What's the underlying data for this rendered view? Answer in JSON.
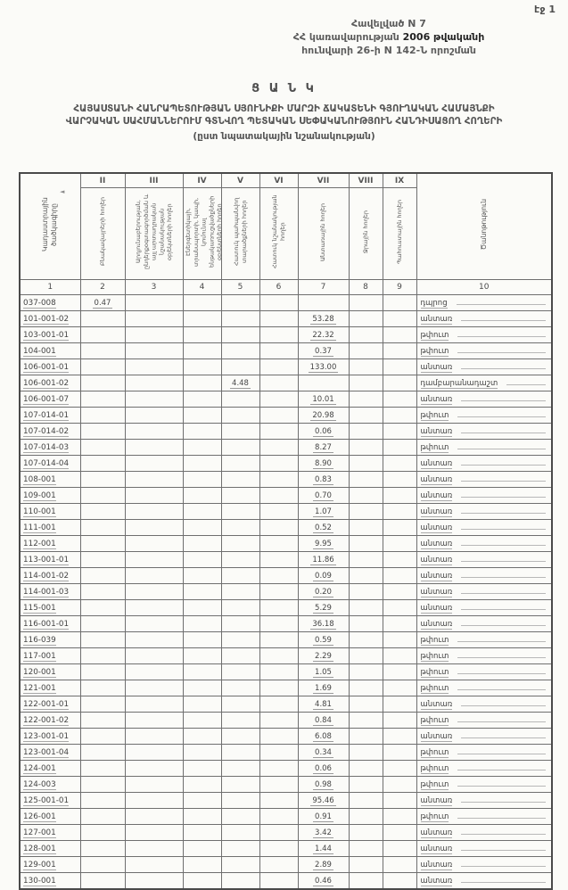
{
  "page": {
    "page_label": "էջ 1"
  },
  "appendix": {
    "line1": "Հավելված N 7",
    "line2a": "ՀՀ կառավարության ",
    "line2b": "2006 թվականի",
    "line3": "հունվարի 26-ի N 142-Ն որոշման"
  },
  "title": {
    "heading": "Ց Ա Ն Կ",
    "line1": "ՀԱՅԱՍՏԱՆԻ ՀԱՆՐԱՊԵՏՈՒԹՅԱՆ ՍՅՈՒՆԻՔԻ ՄԱՐԶԻ ՃԱԿԱՏԵՆԻ ԳՅՈՒՂԱԿԱՆ ՀԱՄԱՅՆՔԻ",
    "line2": "ՎԱՐՉԱԿԱՆ ՍԱՀՄԱՆՆԵՐՈՒՄ ԳՏՆՎՈՂ ՊԵՏԱԿԱՆ ՍԵՓԱԿԱՆՈՒԹՅՈՒՆ ՀԱՆԴԻՍԱՑՈՂ ՀՈՂԵՐԻ",
    "line3": "(ըստ նպատակային նշանակության)"
  },
  "artifact": {
    "arrow_mark": "◄"
  },
  "colors": {
    "ink": "#4a4a4a",
    "border": "#6f6f6f",
    "background": "#fbfbf8"
  },
  "table": {
    "roman_numerals": [
      "II",
      "III",
      "IV",
      "V",
      "VI",
      "VII",
      "VIII",
      "IX"
    ],
    "column_headers": [
      "Կադաստրային ծածկագիրը",
      "Բնակավայրերի հողեր",
      "Արդյունաբերության, ընդերքօգտագործման և այլ արտադրական նշանակության օբյեկտների հողեր",
      "Էներգետիկայի, տրանսպորտի, կապի, կոմունալ ենթակառուցվածքների օբյեկտների հողեր",
      "Հատուկ պահպանվող տարածքների հողեր",
      "Հատուկ նշանակության հողեր",
      "Անտառային հողեր",
      "Ջրային հողեր",
      "Պահուստային հողեր",
      "Ծանոթություն"
    ],
    "column_numbers": [
      "1",
      "2",
      "3",
      "4",
      "5",
      "6",
      "7",
      "8",
      "9",
      "10"
    ],
    "rows": [
      [
        "037-008",
        "0.47",
        "",
        "",
        "",
        "",
        "",
        "",
        "",
        "դպրոց"
      ],
      [
        "101-001-02",
        "",
        "",
        "",
        "",
        "",
        "53.28",
        "",
        "",
        "անտառ"
      ],
      [
        "103-001-01",
        "",
        "",
        "",
        "",
        "",
        "22.32",
        "",
        "",
        "թփուտ"
      ],
      [
        "104-001",
        "",
        "",
        "",
        "",
        "",
        "0.37",
        "",
        "",
        "թփուտ"
      ],
      [
        "106-001-01",
        "",
        "",
        "",
        "",
        "",
        "133.00",
        "",
        "",
        "անտառ"
      ],
      [
        "106-001-02",
        "",
        "",
        "",
        "4.48",
        "",
        "",
        "",
        "",
        "դամբարանադաշտ"
      ],
      [
        "106-001-07",
        "",
        "",
        "",
        "",
        "",
        "10.01",
        "",
        "",
        "անտառ"
      ],
      [
        "107-014-01",
        "",
        "",
        "",
        "",
        "",
        "20.98",
        "",
        "",
        "թփուտ"
      ],
      [
        "107-014-02",
        "",
        "",
        "",
        "",
        "",
        "0.06",
        "",
        "",
        "անտառ"
      ],
      [
        "107-014-03",
        "",
        "",
        "",
        "",
        "",
        "8.27",
        "",
        "",
        "թփուտ"
      ],
      [
        "107-014-04",
        "",
        "",
        "",
        "",
        "",
        "8.90",
        "",
        "",
        "անտառ"
      ],
      [
        "108-001",
        "",
        "",
        "",
        "",
        "",
        "0.83",
        "",
        "",
        "անտառ"
      ],
      [
        "109-001",
        "",
        "",
        "",
        "",
        "",
        "0.70",
        "",
        "",
        "անտառ"
      ],
      [
        "110-001",
        "",
        "",
        "",
        "",
        "",
        "1.07",
        "",
        "",
        "անտառ"
      ],
      [
        "111-001",
        "",
        "",
        "",
        "",
        "",
        "0.52",
        "",
        "",
        "անտառ"
      ],
      [
        "112-001",
        "",
        "",
        "",
        "",
        "",
        "9.95",
        "",
        "",
        "անտառ"
      ],
      [
        "113-001-01",
        "",
        "",
        "",
        "",
        "",
        "11.86",
        "",
        "",
        "անտառ"
      ],
      [
        "114-001-02",
        "",
        "",
        "",
        "",
        "",
        "0.09",
        "",
        "",
        "անտառ"
      ],
      [
        "114-001-03",
        "",
        "",
        "",
        "",
        "",
        "0.20",
        "",
        "",
        "անտառ"
      ],
      [
        "115-001",
        "",
        "",
        "",
        "",
        "",
        "5.29",
        "",
        "",
        "անտառ"
      ],
      [
        "116-001-01",
        "",
        "",
        "",
        "",
        "",
        "36.18",
        "",
        "",
        "անտառ"
      ],
      [
        "116-039",
        "",
        "",
        "",
        "",
        "",
        "0.59",
        "",
        "",
        "թփուտ"
      ],
      [
        "117-001",
        "",
        "",
        "",
        "",
        "",
        "2.29",
        "",
        "",
        "թփուտ"
      ],
      [
        "120-001",
        "",
        "",
        "",
        "",
        "",
        "1.05",
        "",
        "",
        "թփուտ"
      ],
      [
        "121-001",
        "",
        "",
        "",
        "",
        "",
        "1.69",
        "",
        "",
        "թփուտ"
      ],
      [
        "122-001-01",
        "",
        "",
        "",
        "",
        "",
        "4.81",
        "",
        "",
        "անտառ"
      ],
      [
        "122-001-02",
        "",
        "",
        "",
        "",
        "",
        "0.84",
        "",
        "",
        "թփուտ"
      ],
      [
        "123-001-01",
        "",
        "",
        "",
        "",
        "",
        "6.08",
        "",
        "",
        "անտառ"
      ],
      [
        "123-001-04",
        "",
        "",
        "",
        "",
        "",
        "0.34",
        "",
        "",
        "թփուտ"
      ],
      [
        "124-001",
        "",
        "",
        "",
        "",
        "",
        "0.06",
        "",
        "",
        "թփուտ"
      ],
      [
        "124-003",
        "",
        "",
        "",
        "",
        "",
        "0.98",
        "",
        "",
        "թփուտ"
      ],
      [
        "125-001-01",
        "",
        "",
        "",
        "",
        "",
        "95.46",
        "",
        "",
        "անտառ"
      ],
      [
        "126-001",
        "",
        "",
        "",
        "",
        "",
        "0.91",
        "",
        "",
        "թփուտ"
      ],
      [
        "127-001",
        "",
        "",
        "",
        "",
        "",
        "3.42",
        "",
        "",
        "անտառ"
      ],
      [
        "128-001",
        "",
        "",
        "",
        "",
        "",
        "1.44",
        "",
        "",
        "անտառ"
      ],
      [
        "129-001",
        "",
        "",
        "",
        "",
        "",
        "2.89",
        "",
        "",
        "անտառ"
      ],
      [
        "130-001",
        "",
        "",
        "",
        "",
        "",
        "0.46",
        "",
        "",
        "անտառ"
      ]
    ]
  }
}
